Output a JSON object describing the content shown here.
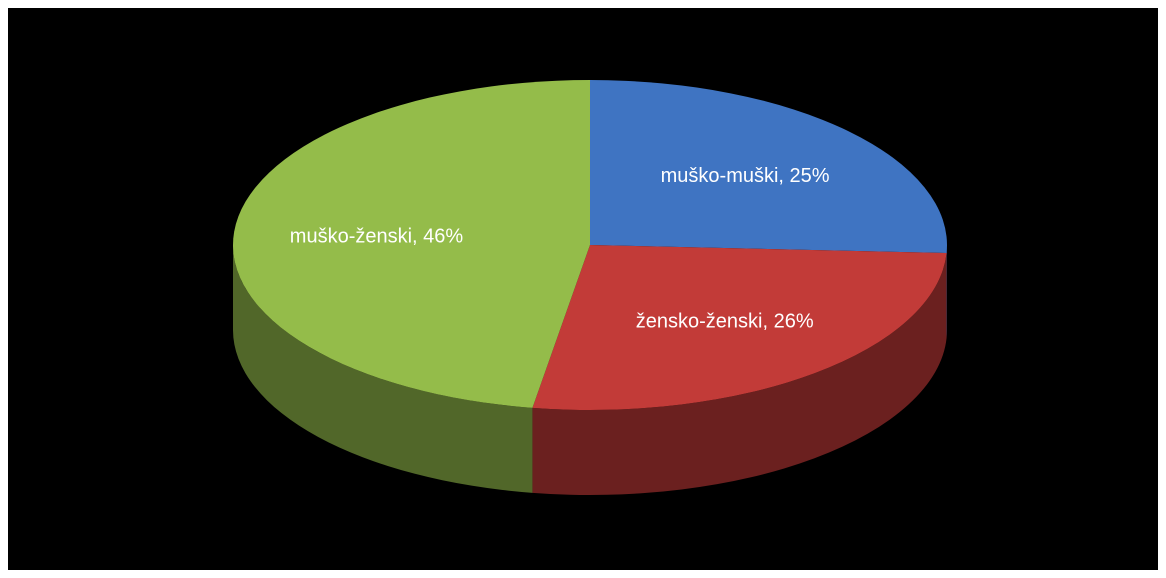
{
  "chart_data": {
    "type": "pie",
    "three_d": true,
    "values": [
      25,
      26,
      46
    ],
    "value_labels": [
      "muško-muški, 25%",
      "žensko-ženski, 26%",
      "muško-ženski, 46%"
    ],
    "colors": [
      "#3f74c2",
      "#c23b38",
      "#94bc4a"
    ]
  }
}
